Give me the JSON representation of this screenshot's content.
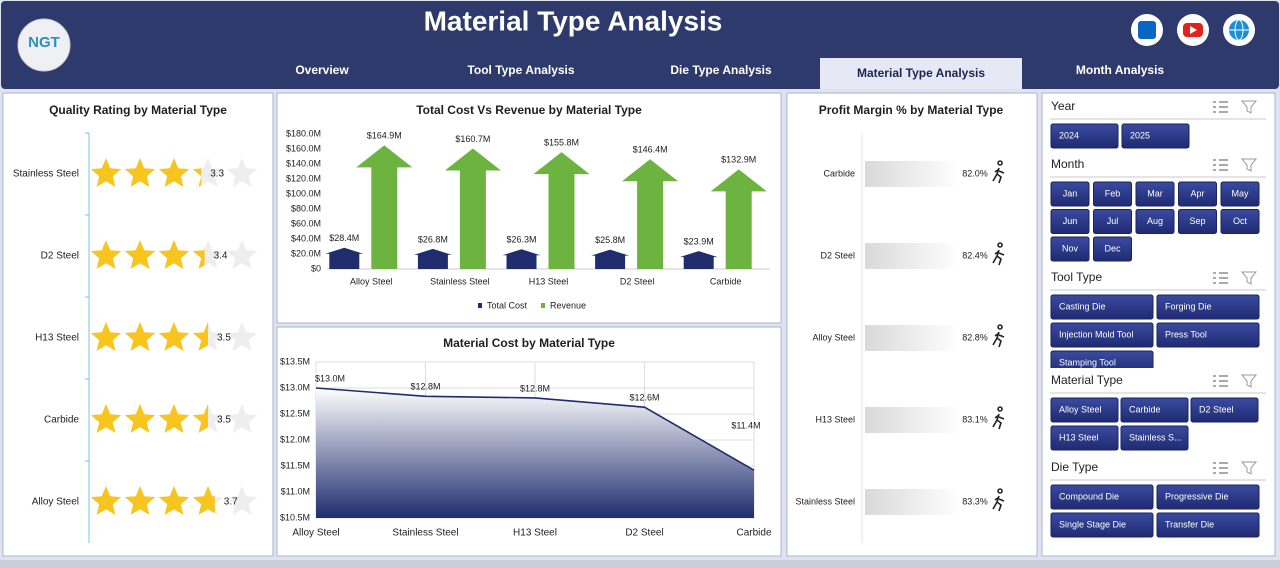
{
  "header": {
    "logo": "NGT",
    "title": "Material Type Analysis",
    "tabs": [
      "Overview",
      "Tool Type Analysis",
      "Die Type Analysis",
      "Material Type Analysis",
      "Month Analysis"
    ],
    "active_tab": 3
  },
  "chart_data": [
    {
      "type": "rating",
      "title": "Quality Rating by Material Type",
      "categories": [
        "Stainless Steel",
        "D2 Steel",
        "H13 Steel",
        "Carbide",
        "Alloy Steel"
      ],
      "values": [
        3.3,
        3.4,
        3.5,
        3.5,
        3.7
      ],
      "xlim": [
        0,
        5
      ],
      "color": "#f7c51e"
    },
    {
      "type": "bar",
      "title": "Total Cost Vs Revenue by Material Type",
      "categories": [
        "Alloy Steel",
        "Stainless Steel",
        "H13 Steel",
        "D2 Steel",
        "Carbide"
      ],
      "series": [
        {
          "name": "Total Cost",
          "color": "#1f2c6e",
          "values": [
            28400000,
            26800000,
            26300000,
            25800000,
            23900000
          ],
          "value_labels": [
            "$28.4M",
            "$26.8M",
            "$26.3M",
            "$25.8M",
            "$23.9M"
          ]
        },
        {
          "name": "Revenue",
          "color": "#6db33f",
          "values": [
            164900000,
            160700000,
            155800000,
            146400000,
            132900000
          ],
          "value_labels": [
            "$164.9M",
            "$160.7M",
            "$155.8M",
            "$146.4M",
            "$132.9M"
          ]
        }
      ],
      "ylim": [
        0,
        180000000
      ],
      "yticks": [
        {
          "value": 0,
          "label": "$0"
        },
        {
          "value": 20000000,
          "label": "$20.0M"
        },
        {
          "value": 40000000,
          "label": "$40.0M"
        },
        {
          "value": 60000000,
          "label": "$60.0M"
        },
        {
          "value": 80000000,
          "label": "$80.0M"
        },
        {
          "value": 100000000,
          "label": "$100.0M"
        },
        {
          "value": 120000000,
          "label": "$120.0M"
        },
        {
          "value": 140000000,
          "label": "$140.0M"
        },
        {
          "value": 160000000,
          "label": "$160.0M"
        },
        {
          "value": 180000000,
          "label": "$180.0M"
        }
      ],
      "legend": "bottom"
    },
    {
      "type": "area",
      "title": "Material Cost by Material Type",
      "categories": [
        "Alloy Steel",
        "Stainless Steel",
        "H13 Steel",
        "D2 Steel",
        "Carbide"
      ],
      "values": [
        13000000,
        12840000,
        12810000,
        12630000,
        11420000
      ],
      "value_labels": [
        "$13.0M",
        "$12.8M",
        "$12.8M",
        "$12.6M",
        "$11.4M"
      ],
      "color": "#1f2c6e",
      "ylim": [
        10500000,
        13500000
      ],
      "yticks": [
        {
          "value": 10500000,
          "label": "$10.5M"
        },
        {
          "value": 11000000,
          "label": "$11.0M"
        },
        {
          "value": 11500000,
          "label": "$11.5M"
        },
        {
          "value": 12000000,
          "label": "$12.0M"
        },
        {
          "value": 12500000,
          "label": "$12.5M"
        },
        {
          "value": 13000000,
          "label": "$13.0M"
        },
        {
          "value": 13500000,
          "label": "$13.5M"
        }
      ],
      "grid": true
    },
    {
      "type": "hbar",
      "title": "Profit Margin % by Material Type",
      "categories": [
        "Carbide",
        "D2 Steel",
        "Alloy Steel",
        "H13 Steel",
        "Stainless Steel"
      ],
      "values": [
        82.0,
        82.4,
        82.8,
        83.1,
        83.3
      ],
      "value_labels": [
        "82.0%",
        "82.4%",
        "82.8%",
        "83.1%",
        "83.3%"
      ],
      "color": "#d9d9d9"
    }
  ],
  "filters": [
    {
      "title": "Year",
      "options": [
        "2024",
        "2025"
      ]
    },
    {
      "title": "Month",
      "options": [
        "Jan",
        "Feb",
        "Mar",
        "Apr",
        "May",
        "Jun",
        "Jul",
        "Aug",
        "Sep",
        "Oct",
        "Nov",
        "Dec"
      ]
    },
    {
      "title": "Tool Type",
      "options": [
        "Casting Die",
        "Forging Die",
        "Injection Mold Tool",
        "Press Tool",
        "Stamping Tool"
      ]
    },
    {
      "title": "Material Type",
      "options": [
        "Alloy Steel",
        "Carbide",
        "D2 Steel",
        "H13 Steel",
        "Stainless S..."
      ]
    },
    {
      "title": "Die Type",
      "options": [
        "Compound Die",
        "Progressive Die",
        "Single Stage Die",
        "Transfer Die"
      ]
    }
  ]
}
